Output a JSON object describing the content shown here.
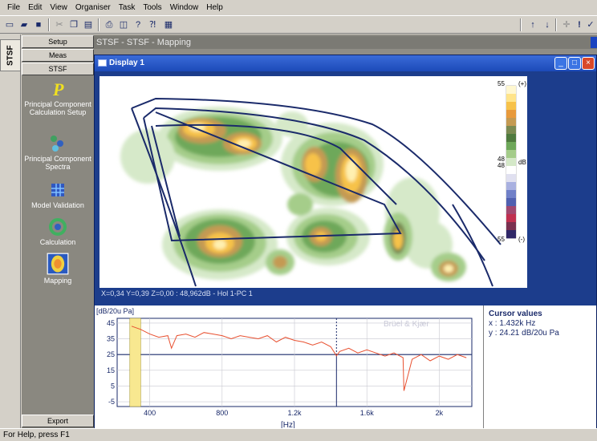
{
  "menu": [
    "File",
    "Edit",
    "View",
    "Organiser",
    "Task",
    "Tools",
    "Window",
    "Help"
  ],
  "toolbar": {
    "left_icons": [
      "new-icon",
      "open-icon",
      "save-icon",
      "cut-icon",
      "copy-icon",
      "paste-icon",
      "print-icon",
      "print-preview-icon",
      "help-icon",
      "context-help-icon",
      "monitor-icon"
    ],
    "right_icons": [
      "arrow-up-icon",
      "arrow-down-icon",
      "crosshair-icon",
      "exclamation-icon",
      "check-icon"
    ]
  },
  "side_tab": "STSF",
  "nav": {
    "setup": "Setup",
    "meas": "Meas",
    "stsf": "STSF",
    "items": [
      {
        "label": "Principal Component Calculation Setup",
        "icon": "principal-component-p-icon"
      },
      {
        "label": "Principal Component Spectra",
        "icon": "spectra-icon"
      },
      {
        "label": "Model Validation",
        "icon": "model-validation-icon"
      },
      {
        "label": "Calculation",
        "icon": "calculation-icon"
      },
      {
        "label": "Mapping",
        "icon": "mapping-icon"
      }
    ],
    "export": "Export"
  },
  "workspace_title": "STSF - STSF - Mapping",
  "window": {
    "title": "Display 1",
    "status": "X=0,34 Y=0,39 Z=0,00 : 48,962dB - Hol 1-PC 1"
  },
  "colorbar": {
    "top_value": "55",
    "top_sign": "(+)",
    "mid_value_a": "48",
    "mid_value_b": "48",
    "unit": "dB",
    "bottom_value": "55",
    "bottom_sign": "(-)",
    "colors": [
      "#fff7d0",
      "#ffe48a",
      "#f7c24a",
      "#e89a3c",
      "#c49a52",
      "#7a8a52",
      "#4e7a3e",
      "#6ea85a",
      "#a4cc8a",
      "#d4e8c8",
      "#ffffff",
      "#e0e0f0",
      "#a8b0e0",
      "#7080c8",
      "#5060b0",
      "#a04870",
      "#c03050",
      "#7a3050",
      "#302868"
    ]
  },
  "spectrum": {
    "ylabel": "[dB/20u Pa]",
    "xlabel": "[Hz]",
    "y_ticks": [
      "45",
      "35",
      "25",
      "15",
      "5",
      "-5"
    ],
    "x_ticks": [
      "400",
      "800",
      "1.2k",
      "1.6k",
      "2k"
    ],
    "watermark": "Brüel & Kjær",
    "cursor_x_hz": 1432,
    "highlight_band_hz": [
      290,
      350
    ]
  },
  "chart_data": {
    "type": "line",
    "ylabel": "[dB/20u Pa]",
    "xlabel": "[Hz]",
    "xlim": [
      220,
      2180
    ],
    "ylim": [
      -8,
      48
    ],
    "x": [
      300,
      350,
      400,
      450,
      500,
      520,
      550,
      600,
      650,
      700,
      750,
      800,
      850,
      900,
      950,
      1000,
      1050,
      1100,
      1150,
      1200,
      1250,
      1300,
      1350,
      1400,
      1432,
      1450,
      1500,
      1550,
      1600,
      1650,
      1700,
      1750,
      1800,
      1805,
      1850,
      1900,
      1950,
      2000,
      2050,
      2100,
      2150
    ],
    "series": [
      {
        "values": [
          43,
          41,
          38,
          36,
          37,
          29,
          37,
          38,
          36,
          39,
          38,
          37,
          35,
          37,
          36,
          35,
          37,
          33,
          36,
          34,
          33,
          31,
          33,
          30,
          24.21,
          27,
          29,
          26,
          28,
          26,
          24,
          26,
          23,
          2,
          22,
          25,
          21,
          24,
          22,
          25,
          23
        ]
      }
    ]
  },
  "cursor": {
    "title": "Cursor values",
    "x": "x : 1.432k Hz",
    "y": "y : 24.21 dB/20u Pa"
  },
  "statusbar": "For Help, press F1"
}
